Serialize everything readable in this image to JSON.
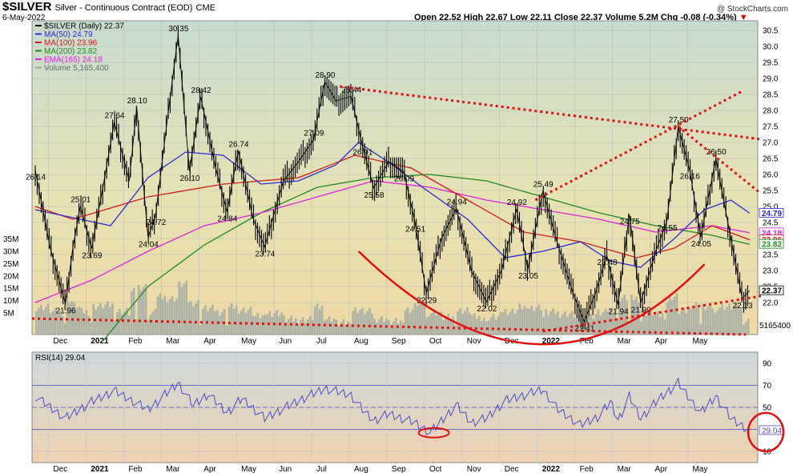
{
  "header": {
    "symbol": "$SILVER",
    "name": "Silver - Continuous Contract (EOD)",
    "exchange": "CME",
    "date": "6-May-2022",
    "ohlc": "Open 22.52  High 22.67  Low 22.11  Close 22.37  Volume 5.2M  Chg -0.08 (-0.34%)",
    "watermark": "@ StockCharts.com"
  },
  "colors": {
    "price": "#000000",
    "ma50": "#2b2bd6",
    "ma100": "#d61a1a",
    "ma200": "#1f8a1f",
    "ema165": "#e020e0",
    "volume": "#9aa6a6",
    "trend": "#e01010",
    "rsi": "#4b4bc8"
  },
  "chart_data": [
    {
      "type": "line",
      "title": "$SILVER (Daily) 22.37",
      "legend": [
        {
          "label": "$SILVER (Daily) 22.37",
          "color": "#000000"
        },
        {
          "label": "MA(50) 24.79",
          "color": "#2b2bd6"
        },
        {
          "label": "MA(100) 23.96",
          "color": "#d61a1a"
        },
        {
          "label": "MA(200) 23.82",
          "color": "#1f8a1f"
        },
        {
          "label": "EMA(165) 24.18",
          "color": "#e020e0"
        },
        {
          "label": "Volume 5,165,400",
          "color": "#9aa6a6"
        }
      ],
      "legend_position": "top-left",
      "grid": true,
      "ylim": [
        21,
        30.8
      ],
      "y_ticks": [
        "22.0",
        "22.5",
        "23.0",
        "23.5",
        "24.0",
        "24.5",
        "25.0",
        "25.5",
        "26.0",
        "26.5",
        "27.0",
        "27.5",
        "28.0",
        "28.5",
        "29.0",
        "29.5",
        "30.0",
        "30.5"
      ],
      "volume_ticks": [
        "5M",
        "10M",
        "15M",
        "20M",
        "25M",
        "30M",
        "35M"
      ],
      "x_ticks": [
        "Dec",
        "2021",
        "Feb",
        "Mar",
        "Apr",
        "May",
        "Jun",
        "Jul",
        "Aug",
        "Sep",
        "Oct",
        "Nov",
        "Dec",
        "2022",
        "Feb",
        "Mar",
        "Apr",
        "May"
      ],
      "price_points": [
        {
          "m": 0.0,
          "v": 26.14
        },
        {
          "m": 0.4,
          "v": 23.7
        },
        {
          "m": 0.8,
          "v": 21.96
        },
        {
          "m": 1.0,
          "v": 23.7
        },
        {
          "m": 1.2,
          "v": 25.01
        },
        {
          "m": 1.5,
          "v": 23.69
        },
        {
          "m": 1.8,
          "v": 25.6
        },
        {
          "m": 2.1,
          "v": 27.64
        },
        {
          "m": 2.5,
          "v": 25.8
        },
        {
          "m": 2.7,
          "v": 28.1
        },
        {
          "m": 3.0,
          "v": 24.04
        },
        {
          "m": 3.2,
          "v": 24.72
        },
        {
          "m": 3.5,
          "v": 27.6
        },
        {
          "m": 3.8,
          "v": 30.35
        },
        {
          "m": 4.1,
          "v": 26.1
        },
        {
          "m": 4.4,
          "v": 28.42
        },
        {
          "m": 4.8,
          "v": 26.2
        },
        {
          "m": 5.1,
          "v": 24.84
        },
        {
          "m": 5.4,
          "v": 26.74
        },
        {
          "m": 5.8,
          "v": 24.6
        },
        {
          "m": 6.1,
          "v": 23.74
        },
        {
          "m": 6.6,
          "v": 25.8
        },
        {
          "m": 7.0,
          "v": 26.4
        },
        {
          "m": 7.4,
          "v": 27.09
        },
        {
          "m": 7.7,
          "v": 28.9
        },
        {
          "m": 8.0,
          "v": 28.3
        },
        {
          "m": 8.4,
          "v": 28.44
        },
        {
          "m": 8.7,
          "v": 26.91
        },
        {
          "m": 9.0,
          "v": 25.58
        },
        {
          "m": 9.4,
          "v": 26.4
        },
        {
          "m": 9.8,
          "v": 26.09
        },
        {
          "m": 10.1,
          "v": 24.51
        },
        {
          "m": 10.4,
          "v": 22.29
        },
        {
          "m": 10.8,
          "v": 24.0
        },
        {
          "m": 11.2,
          "v": 24.94
        },
        {
          "m": 11.6,
          "v": 23.0
        },
        {
          "m": 12.0,
          "v": 22.02
        },
        {
          "m": 12.4,
          "v": 23.0
        },
        {
          "m": 12.8,
          "v": 24.92
        },
        {
          "m": 13.1,
          "v": 23.05
        },
        {
          "m": 13.5,
          "v": 25.49
        },
        {
          "m": 13.9,
          "v": 23.8
        },
        {
          "m": 14.3,
          "v": 22.3
        },
        {
          "m": 14.6,
          "v": 21.41
        },
        {
          "m": 14.9,
          "v": 22.3
        },
        {
          "m": 15.2,
          "v": 23.48
        },
        {
          "m": 15.5,
          "v": 21.94
        },
        {
          "m": 15.8,
          "v": 24.75
        },
        {
          "m": 16.1,
          "v": 21.99
        },
        {
          "m": 16.5,
          "v": 23.6
        },
        {
          "m": 16.8,
          "v": 24.55
        },
        {
          "m": 17.1,
          "v": 27.5
        },
        {
          "m": 17.4,
          "v": 26.16
        },
        {
          "m": 17.7,
          "v": 24.05
        },
        {
          "m": 18.1,
          "v": 26.5
        },
        {
          "m": 18.5,
          "v": 24.0
        },
        {
          "m": 18.8,
          "v": 22.13
        },
        {
          "m": 19.0,
          "v": 22.37
        }
      ],
      "ma50": [
        {
          "m": 0.0,
          "v": 24.9
        },
        {
          "m": 2.0,
          "v": 24.4
        },
        {
          "m": 3.0,
          "v": 25.9
        },
        {
          "m": 4.0,
          "v": 26.7
        },
        {
          "m": 5.0,
          "v": 26.6
        },
        {
          "m": 6.0,
          "v": 25.7
        },
        {
          "m": 7.0,
          "v": 25.8
        },
        {
          "m": 8.0,
          "v": 26.3
        },
        {
          "m": 8.6,
          "v": 27.0
        },
        {
          "m": 9.5,
          "v": 26.3
        },
        {
          "m": 10.3,
          "v": 25.6
        },
        {
          "m": 11.5,
          "v": 24.6
        },
        {
          "m": 12.5,
          "v": 23.4
        },
        {
          "m": 13.5,
          "v": 23.6
        },
        {
          "m": 14.5,
          "v": 23.9
        },
        {
          "m": 15.3,
          "v": 23.3
        },
        {
          "m": 16.1,
          "v": 23.1
        },
        {
          "m": 17.0,
          "v": 24.0
        },
        {
          "m": 17.8,
          "v": 24.9
        },
        {
          "m": 18.5,
          "v": 25.2
        },
        {
          "m": 19.0,
          "v": 24.79
        }
      ],
      "ma100": [
        {
          "m": 0.0,
          "v": 25.0
        },
        {
          "m": 1.0,
          "v": 24.6
        },
        {
          "m": 3.0,
          "v": 25.3
        },
        {
          "m": 5.0,
          "v": 25.7
        },
        {
          "m": 7.0,
          "v": 25.9
        },
        {
          "m": 8.5,
          "v": 26.6
        },
        {
          "m": 10.0,
          "v": 26.2
        },
        {
          "m": 11.5,
          "v": 25.2
        },
        {
          "m": 13.0,
          "v": 24.2
        },
        {
          "m": 14.5,
          "v": 23.9
        },
        {
          "m": 16.0,
          "v": 23.4
        },
        {
          "m": 17.0,
          "v": 23.7
        },
        {
          "m": 18.0,
          "v": 24.4
        },
        {
          "m": 19.0,
          "v": 23.96
        }
      ],
      "ma200": [
        {
          "m": 1.8,
          "v": 20.8
        },
        {
          "m": 3.0,
          "v": 22.5
        },
        {
          "m": 4.5,
          "v": 23.8
        },
        {
          "m": 6.0,
          "v": 24.8
        },
        {
          "m": 7.5,
          "v": 25.6
        },
        {
          "m": 9.0,
          "v": 25.9
        },
        {
          "m": 10.5,
          "v": 26.0
        },
        {
          "m": 12.0,
          "v": 25.8
        },
        {
          "m": 13.5,
          "v": 25.3
        },
        {
          "m": 15.0,
          "v": 24.8
        },
        {
          "m": 16.5,
          "v": 24.4
        },
        {
          "m": 18.0,
          "v": 24.1
        },
        {
          "m": 19.0,
          "v": 23.82
        }
      ],
      "ema165": [
        {
          "m": 0.0,
          "v": 22.0
        },
        {
          "m": 1.5,
          "v": 22.7
        },
        {
          "m": 3.0,
          "v": 23.6
        },
        {
          "m": 4.5,
          "v": 24.4
        },
        {
          "m": 6.0,
          "v": 24.8
        },
        {
          "m": 7.5,
          "v": 25.3
        },
        {
          "m": 9.0,
          "v": 25.8
        },
        {
          "m": 10.5,
          "v": 25.6
        },
        {
          "m": 12.0,
          "v": 25.2
        },
        {
          "m": 13.5,
          "v": 24.9
        },
        {
          "m": 15.0,
          "v": 24.6
        },
        {
          "m": 16.5,
          "v": 24.2
        },
        {
          "m": 18.0,
          "v": 24.4
        },
        {
          "m": 19.0,
          "v": 24.18
        }
      ],
      "annotations": [
        {
          "label": "26.14",
          "m": 0.0,
          "v": 26.14
        },
        {
          "label": "25.01",
          "m": 1.2,
          "v": 25.01
        },
        {
          "label": "23.69",
          "m": 1.5,
          "v": 23.69
        },
        {
          "label": "21.96",
          "m": 0.8,
          "v": 21.96
        },
        {
          "label": "27.64",
          "m": 2.1,
          "v": 27.64
        },
        {
          "label": "28.10",
          "m": 2.7,
          "v": 28.1
        },
        {
          "label": "24.04",
          "m": 3.0,
          "v": 24.04
        },
        {
          "label": "24.72",
          "m": 3.2,
          "v": 24.72
        },
        {
          "label": "30.35",
          "m": 3.8,
          "v": 30.35
        },
        {
          "label": "26.10",
          "m": 4.1,
          "v": 26.1
        },
        {
          "label": "28.42",
          "m": 4.4,
          "v": 28.42
        },
        {
          "label": "24.84",
          "m": 5.1,
          "v": 24.84
        },
        {
          "label": "26.74",
          "m": 5.4,
          "v": 26.74
        },
        {
          "label": "23.74",
          "m": 6.1,
          "v": 23.74
        },
        {
          "label": "28.90",
          "m": 7.7,
          "v": 28.9
        },
        {
          "label": "27.09",
          "m": 7.4,
          "v": 27.09
        },
        {
          "label": "28.44",
          "m": 8.4,
          "v": 28.44
        },
        {
          "label": "26.91",
          "m": 8.7,
          "v": 26.91
        },
        {
          "label": "25.58",
          "m": 9.0,
          "v": 25.58
        },
        {
          "label": "26.09",
          "m": 9.8,
          "v": 26.09
        },
        {
          "label": "24.51",
          "m": 10.1,
          "v": 24.51
        },
        {
          "label": "22.29",
          "m": 10.4,
          "v": 22.29
        },
        {
          "label": "24.94",
          "m": 11.2,
          "v": 24.94
        },
        {
          "label": "22.02",
          "m": 12.0,
          "v": 22.02
        },
        {
          "label": "24.92",
          "m": 12.8,
          "v": 24.92
        },
        {
          "label": "23.05",
          "m": 13.1,
          "v": 23.05
        },
        {
          "label": "25.49",
          "m": 13.5,
          "v": 25.49
        },
        {
          "label": "21.41",
          "m": 14.6,
          "v": 21.41
        },
        {
          "label": "23.48",
          "m": 15.2,
          "v": 23.48
        },
        {
          "label": "21.94",
          "m": 15.5,
          "v": 21.94
        },
        {
          "label": "24.75",
          "m": 15.8,
          "v": 24.75
        },
        {
          "label": "21.99",
          "m": 16.1,
          "v": 21.99
        },
        {
          "label": "24.55",
          "m": 16.8,
          "v": 24.55
        },
        {
          "label": "27.50",
          "m": 17.1,
          "v": 27.5
        },
        {
          "label": "26.16",
          "m": 17.4,
          "v": 26.16
        },
        {
          "label": "24.05",
          "m": 17.7,
          "v": 24.05
        },
        {
          "label": "26.50",
          "m": 18.1,
          "v": 26.5
        },
        {
          "label": "22.13",
          "m": 18.8,
          "v": 22.13
        }
      ],
      "right_axis_labels": [
        {
          "label": "24.79",
          "v": 24.79,
          "color": "#2b2bd6"
        },
        {
          "label": "24.18",
          "v": 24.18,
          "color": "#e020e0"
        },
        {
          "label": "23.96",
          "v": 23.96,
          "color": "#d61a1a"
        },
        {
          "label": "23.82",
          "v": 23.82,
          "color": "#1f8a1f"
        },
        {
          "label": "22.37",
          "v": 22.37,
          "color": "#000000"
        }
      ],
      "volume_last_label": "5165400"
    },
    {
      "type": "line",
      "title": "RSI(14) 29.04",
      "ylim": [
        0,
        100
      ],
      "y_ticks": [
        "10",
        "30",
        "50",
        "70",
        "90"
      ],
      "ref_lines": [
        30,
        50,
        70
      ],
      "x_ticks": [
        "Dec",
        "2021",
        "Feb",
        "Mar",
        "Apr",
        "May",
        "Jun",
        "Jul",
        "Aug",
        "Sep",
        "Oct",
        "Nov",
        "Dec",
        "2022",
        "Feb",
        "Mar",
        "Apr",
        "May"
      ],
      "last_value_label": "29.04",
      "points": [
        {
          "m": 0.0,
          "v": 60
        },
        {
          "m": 0.8,
          "v": 40
        },
        {
          "m": 1.5,
          "v": 55
        },
        {
          "m": 2.1,
          "v": 65
        },
        {
          "m": 3.0,
          "v": 48
        },
        {
          "m": 3.8,
          "v": 72
        },
        {
          "m": 4.2,
          "v": 52
        },
        {
          "m": 4.6,
          "v": 62
        },
        {
          "m": 5.1,
          "v": 45
        },
        {
          "m": 5.5,
          "v": 58
        },
        {
          "m": 6.1,
          "v": 40
        },
        {
          "m": 7.0,
          "v": 56
        },
        {
          "m": 7.7,
          "v": 67
        },
        {
          "m": 8.4,
          "v": 61
        },
        {
          "m": 8.7,
          "v": 48
        },
        {
          "m": 9.0,
          "v": 38
        },
        {
          "m": 9.4,
          "v": 44
        },
        {
          "m": 10.1,
          "v": 36
        },
        {
          "m": 10.5,
          "v": 27
        },
        {
          "m": 11.2,
          "v": 52
        },
        {
          "m": 11.6,
          "v": 36
        },
        {
          "m": 12.0,
          "v": 40
        },
        {
          "m": 12.5,
          "v": 56
        },
        {
          "m": 13.5,
          "v": 66
        },
        {
          "m": 13.9,
          "v": 48
        },
        {
          "m": 14.5,
          "v": 34
        },
        {
          "m": 15.0,
          "v": 42
        },
        {
          "m": 15.3,
          "v": 55
        },
        {
          "m": 15.5,
          "v": 38
        },
        {
          "m": 15.8,
          "v": 60
        },
        {
          "m": 16.1,
          "v": 40
        },
        {
          "m": 16.6,
          "v": 58
        },
        {
          "m": 17.1,
          "v": 72
        },
        {
          "m": 17.4,
          "v": 58
        },
        {
          "m": 17.7,
          "v": 45
        },
        {
          "m": 18.1,
          "v": 60
        },
        {
          "m": 18.5,
          "v": 40
        },
        {
          "m": 19.0,
          "v": 29
        }
      ]
    }
  ]
}
